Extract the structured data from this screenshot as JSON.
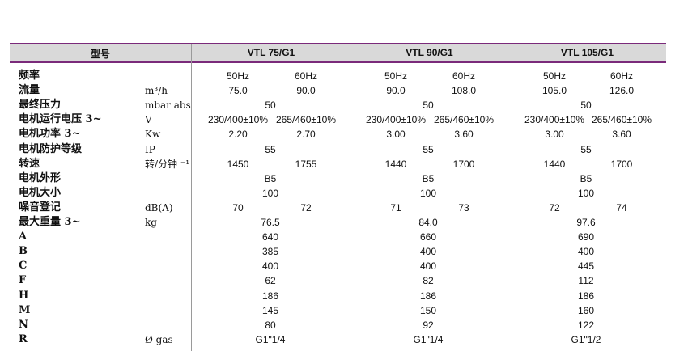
{
  "colors": {
    "accent_rule": "#7a2a7a",
    "header_bg": "#d9d9d9"
  },
  "header": {
    "label": "型号",
    "models": [
      "VTL 75/G1",
      "VTL 90/G1",
      "VTL 105/G1"
    ]
  },
  "rows": [
    {
      "label": "频率",
      "unit": "",
      "values": [
        [
          "50Hz",
          "60Hz"
        ],
        [
          "50Hz",
          "60Hz"
        ],
        [
          "50Hz",
          "60Hz"
        ]
      ]
    },
    {
      "label": "流量",
      "unit": "m³/h",
      "values": [
        [
          "75.0",
          "90.0"
        ],
        [
          "90.0",
          "108.0"
        ],
        [
          "105.0",
          "126.0"
        ]
      ]
    },
    {
      "label": "最终压力",
      "unit": "mbar abs.",
      "values": [
        [
          "50"
        ],
        [
          "50"
        ],
        [
          "50"
        ]
      ]
    },
    {
      "label": "电机运行电压 3~",
      "unit": "V",
      "values": [
        [
          "230/400±10%",
          "265/460±10%"
        ],
        [
          "230/400±10%",
          "265/460±10%"
        ],
        [
          "230/400±10%",
          "265/460±10%"
        ]
      ]
    },
    {
      "label": "电机功率 3~",
      "unit": "Kw",
      "values": [
        [
          "2.20",
          "2.70"
        ],
        [
          "3.00",
          "3.60"
        ],
        [
          "3.00",
          "3.60"
        ]
      ]
    },
    {
      "label": "电机防护等级",
      "unit": "IP",
      "values": [
        [
          "55"
        ],
        [
          "55"
        ],
        [
          "55"
        ]
      ]
    },
    {
      "label": "转速",
      "unit": "转/分钟 ⁻¹",
      "values": [
        [
          "1450",
          "1755"
        ],
        [
          "1440",
          "1700"
        ],
        [
          "1440",
          "1700"
        ]
      ]
    },
    {
      "label": "电机外形",
      "unit": "",
      "values": [
        [
          "B5"
        ],
        [
          "B5"
        ],
        [
          "B5"
        ]
      ]
    },
    {
      "label": "电机大小",
      "unit": "",
      "values": [
        [
          "100"
        ],
        [
          "100"
        ],
        [
          "100"
        ]
      ]
    },
    {
      "label": "噪音登记",
      "unit": "dB(A)",
      "values": [
        [
          "70",
          "72"
        ],
        [
          "71",
          "73"
        ],
        [
          "72",
          "74"
        ]
      ]
    },
    {
      "label": "最大重量 3~",
      "unit": "kg",
      "values": [
        [
          "76.5"
        ],
        [
          "84.0"
        ],
        [
          "97.6"
        ]
      ]
    },
    {
      "label": "A",
      "unit": "",
      "values": [
        [
          "640"
        ],
        [
          "660"
        ],
        [
          "690"
        ]
      ]
    },
    {
      "label": "B",
      "unit": "",
      "values": [
        [
          "385"
        ],
        [
          "400"
        ],
        [
          "400"
        ]
      ]
    },
    {
      "label": "C",
      "unit": "",
      "values": [
        [
          "400"
        ],
        [
          "400"
        ],
        [
          "445"
        ]
      ]
    },
    {
      "label": "F",
      "unit": "",
      "values": [
        [
          "62"
        ],
        [
          "82"
        ],
        [
          "112"
        ]
      ]
    },
    {
      "label": "H",
      "unit": "",
      "values": [
        [
          "186"
        ],
        [
          "186"
        ],
        [
          "186"
        ]
      ]
    },
    {
      "label": "M",
      "unit": "",
      "values": [
        [
          "145"
        ],
        [
          "150"
        ],
        [
          "160"
        ]
      ]
    },
    {
      "label": "N",
      "unit": "",
      "values": [
        [
          "80"
        ],
        [
          "92"
        ],
        [
          "122"
        ]
      ]
    },
    {
      "label": "R",
      "unit": "Ø gas",
      "values": [
        [
          "G1\"1/4"
        ],
        [
          "G1\"1/4"
        ],
        [
          "G1\"1/2"
        ]
      ]
    }
  ]
}
